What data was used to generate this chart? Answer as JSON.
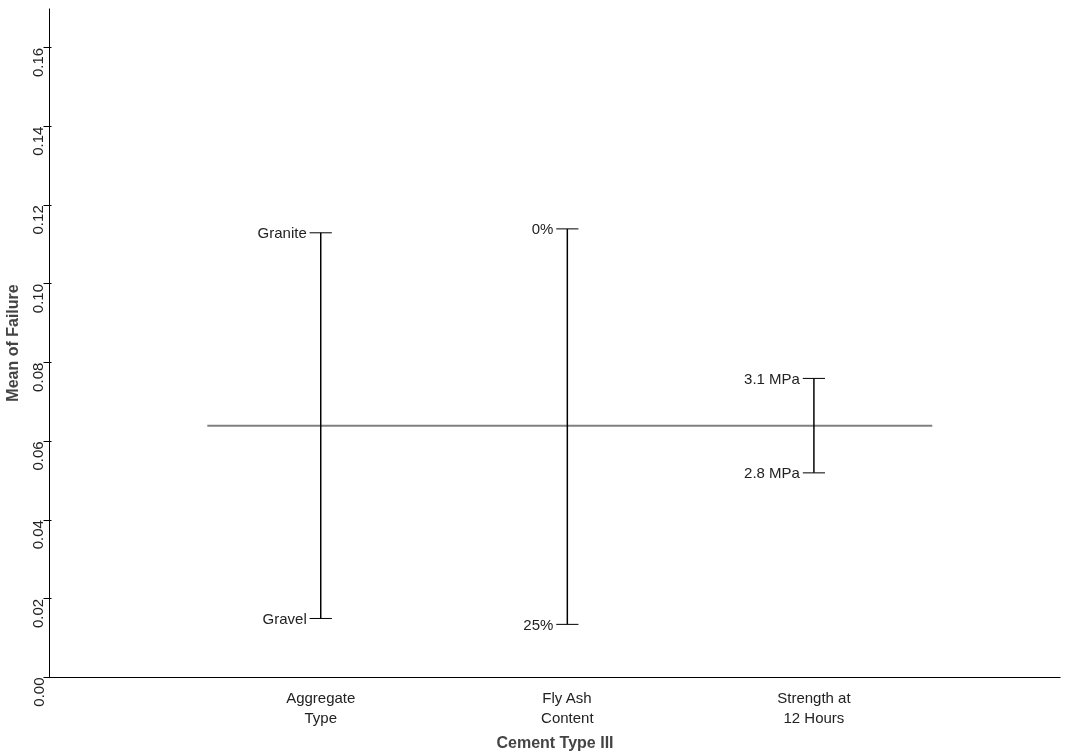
{
  "chart_data": {
    "type": "bar",
    "xlabel": "Cement Type III",
    "ylabel": "Mean of Failure",
    "categories": [
      "Aggregate Type",
      "Fly Ash Content",
      "Strength at 12 Hours"
    ],
    "base": [
      0.015,
      0.0135,
      0.052
    ],
    "values": [
      0.098,
      0.1005,
      0.024
    ],
    "color": "#000000",
    "ylim": [
      0,
      0.17
    ],
    "yticks": [
      {
        "value": 0,
        "label": "0.00"
      },
      0.02,
      0.04,
      0.06,
      0.08,
      {
        "value": 0.1,
        "label": "0.10"
      },
      0.12,
      0.14,
      0.16
    ],
    "ref_lines": [
      {
        "axis": "y",
        "value": 0.064,
        "color": "#808080"
      }
    ],
    "annotations": [
      {
        "text": "Granite",
        "x": "Aggregate Type",
        "y": 0.113
      },
      {
        "text": "Gravel",
        "x": "Aggregate Type",
        "y": 0.015
      },
      {
        "text": "0%",
        "x": "Fly Ash Content",
        "y": 0.114
      },
      {
        "text": "25%",
        "x": "Fly Ash Content",
        "y": 0.0135
      },
      {
        "text": "3.1 MPa",
        "x": "Strength at 12 Hours",
        "y": 0.076
      },
      {
        "text": "2.8 MPa",
        "x": "Strength at 12 Hours",
        "y": 0.052
      }
    ],
    "grid": false
  }
}
